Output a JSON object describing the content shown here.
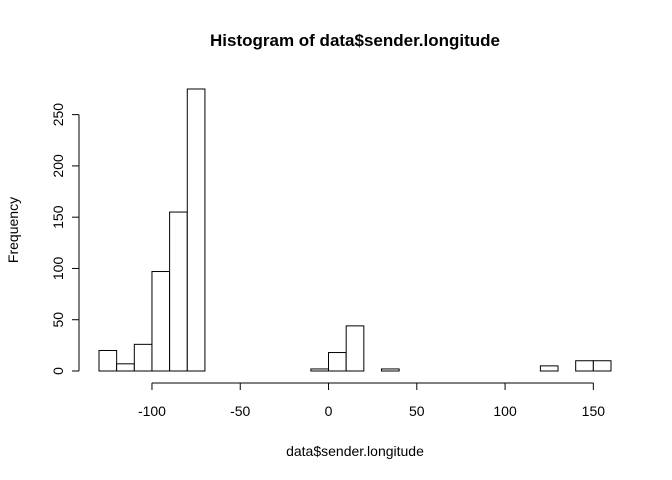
{
  "chart_data": {
    "type": "bar",
    "title": "Histogram of data$sender.longitude",
    "xlabel": "data$sender.longitude",
    "ylabel": "Frequency",
    "bin_width": 10,
    "bins": [
      {
        "x0": -130,
        "x1": -120,
        "count": 20
      },
      {
        "x0": -120,
        "x1": -110,
        "count": 7
      },
      {
        "x0": -110,
        "x1": -100,
        "count": 26
      },
      {
        "x0": -100,
        "x1": -90,
        "count": 97
      },
      {
        "x0": -90,
        "x1": -80,
        "count": 155
      },
      {
        "x0": -80,
        "x1": -70,
        "count": 275
      },
      {
        "x0": -70,
        "x1": -60,
        "count": 0
      },
      {
        "x0": -60,
        "x1": -50,
        "count": 0
      },
      {
        "x0": -50,
        "x1": -40,
        "count": 0
      },
      {
        "x0": -40,
        "x1": -30,
        "count": 0
      },
      {
        "x0": -30,
        "x1": -20,
        "count": 0
      },
      {
        "x0": -20,
        "x1": -10,
        "count": 0
      },
      {
        "x0": -10,
        "x1": 0,
        "count": 2
      },
      {
        "x0": 0,
        "x1": 10,
        "count": 18
      },
      {
        "x0": 10,
        "x1": 20,
        "count": 44
      },
      {
        "x0": 20,
        "x1": 30,
        "count": 0
      },
      {
        "x0": 30,
        "x1": 40,
        "count": 2
      },
      {
        "x0": 40,
        "x1": 50,
        "count": 0
      },
      {
        "x0": 50,
        "x1": 60,
        "count": 0
      },
      {
        "x0": 60,
        "x1": 70,
        "count": 0
      },
      {
        "x0": 70,
        "x1": 80,
        "count": 0
      },
      {
        "x0": 80,
        "x1": 90,
        "count": 0
      },
      {
        "x0": 90,
        "x1": 100,
        "count": 0
      },
      {
        "x0": 100,
        "x1": 110,
        "count": 0
      },
      {
        "x0": 110,
        "x1": 120,
        "count": 0
      },
      {
        "x0": 120,
        "x1": 130,
        "count": 5
      },
      {
        "x0": 130,
        "x1": 140,
        "count": 0
      },
      {
        "x0": 140,
        "x1": 150,
        "count": 10
      },
      {
        "x0": 150,
        "x1": 160,
        "count": 10
      }
    ],
    "x_ticks": [
      -100,
      -50,
      0,
      50,
      100,
      150
    ],
    "y_ticks": [
      0,
      50,
      100,
      150,
      200,
      250
    ],
    "xlim": [
      -130,
      160
    ],
    "ylim": [
      0,
      275
    ],
    "grid": false,
    "legend": "none"
  }
}
